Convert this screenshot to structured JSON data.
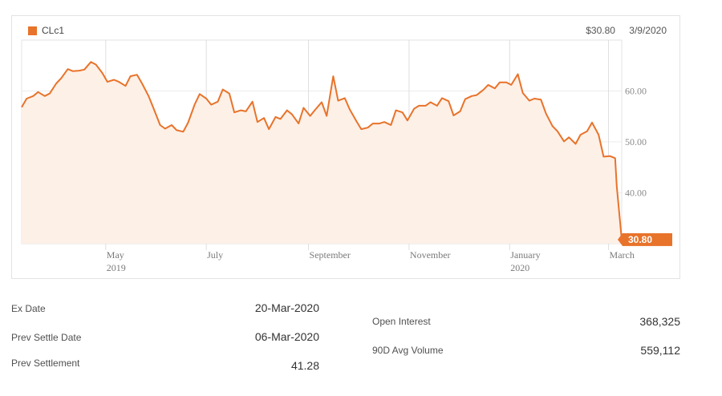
{
  "header": {
    "legend_label": "CLc1",
    "last_price": "$30.80",
    "last_date": "3/9/2020",
    "accent": "#e8732a"
  },
  "chart_data": {
    "type": "area",
    "series": [
      {
        "name": "CLc1",
        "color": "#e8732a"
      }
    ],
    "x_start": "2019-03-11",
    "x_end": "2020-03-09",
    "ylim": [
      30,
      70
    ],
    "yticks": [
      "60.00",
      "50.00",
      "40.00"
    ],
    "ytick_values": [
      60,
      50,
      40
    ],
    "xticks": [
      {
        "label": "May",
        "sub": "2019",
        "date": "2019-05-01"
      },
      {
        "label": "July",
        "sub": "",
        "date": "2019-07-01"
      },
      {
        "label": "September",
        "sub": "",
        "date": "2019-09-01"
      },
      {
        "label": "November",
        "sub": "",
        "date": "2019-11-01"
      },
      {
        "label": "January",
        "sub": "2020",
        "date": "2020-01-01"
      },
      {
        "label": "March",
        "sub": "",
        "date": "2020-03-01"
      }
    ],
    "last_label": "30.80",
    "points": [
      [
        "2019-03-11",
        56.8
      ],
      [
        "2019-03-14",
        58.5
      ],
      [
        "2019-03-18",
        59.0
      ],
      [
        "2019-03-21",
        59.8
      ],
      [
        "2019-03-25",
        59.0
      ],
      [
        "2019-03-28",
        59.5
      ],
      [
        "2019-04-01",
        61.5
      ],
      [
        "2019-04-04",
        62.5
      ],
      [
        "2019-04-08",
        64.3
      ],
      [
        "2019-04-11",
        63.9
      ],
      [
        "2019-04-15",
        64.0
      ],
      [
        "2019-04-18",
        64.2
      ],
      [
        "2019-04-22",
        65.7
      ],
      [
        "2019-04-25",
        65.2
      ],
      [
        "2019-04-29",
        63.5
      ],
      [
        "2019-05-02",
        61.8
      ],
      [
        "2019-05-06",
        62.2
      ],
      [
        "2019-05-09",
        61.8
      ],
      [
        "2019-05-13",
        61.0
      ],
      [
        "2019-05-16",
        62.9
      ],
      [
        "2019-05-20",
        63.2
      ],
      [
        "2019-05-23",
        61.5
      ],
      [
        "2019-05-27",
        59.0
      ],
      [
        "2019-05-30",
        56.6
      ],
      [
        "2019-06-03",
        53.3
      ],
      [
        "2019-06-06",
        52.6
      ],
      [
        "2019-06-10",
        53.3
      ],
      [
        "2019-06-13",
        52.3
      ],
      [
        "2019-06-17",
        52.0
      ],
      [
        "2019-06-20",
        53.8
      ],
      [
        "2019-06-24",
        57.4
      ],
      [
        "2019-06-27",
        59.4
      ],
      [
        "2019-07-01",
        58.5
      ],
      [
        "2019-07-04",
        57.3
      ],
      [
        "2019-07-08",
        57.9
      ],
      [
        "2019-07-11",
        60.3
      ],
      [
        "2019-07-15",
        59.5
      ],
      [
        "2019-07-18",
        55.8
      ],
      [
        "2019-07-22",
        56.2
      ],
      [
        "2019-07-25",
        56.0
      ],
      [
        "2019-07-29",
        57.9
      ],
      [
        "2019-08-01",
        53.9
      ],
      [
        "2019-08-05",
        54.7
      ],
      [
        "2019-08-08",
        52.5
      ],
      [
        "2019-08-12",
        54.9
      ],
      [
        "2019-08-15",
        54.5
      ],
      [
        "2019-08-19",
        56.2
      ],
      [
        "2019-08-22",
        55.4
      ],
      [
        "2019-08-26",
        53.6
      ],
      [
        "2019-08-29",
        56.7
      ],
      [
        "2019-09-02",
        55.1
      ],
      [
        "2019-09-05",
        56.3
      ],
      [
        "2019-09-09",
        57.8
      ],
      [
        "2019-09-12",
        55.1
      ],
      [
        "2019-09-16",
        62.9
      ],
      [
        "2019-09-19",
        58.1
      ],
      [
        "2019-09-23",
        58.6
      ],
      [
        "2019-09-26",
        56.4
      ],
      [
        "2019-09-30",
        54.1
      ],
      [
        "2019-10-03",
        52.5
      ],
      [
        "2019-10-07",
        52.8
      ],
      [
        "2019-10-10",
        53.6
      ],
      [
        "2019-10-14",
        53.6
      ],
      [
        "2019-10-17",
        53.9
      ],
      [
        "2019-10-21",
        53.3
      ],
      [
        "2019-10-24",
        56.2
      ],
      [
        "2019-10-28",
        55.8
      ],
      [
        "2019-10-31",
        54.2
      ],
      [
        "2019-11-04",
        56.5
      ],
      [
        "2019-11-07",
        57.1
      ],
      [
        "2019-11-11",
        57.1
      ],
      [
        "2019-11-14",
        57.8
      ],
      [
        "2019-11-18",
        57.1
      ],
      [
        "2019-11-21",
        58.6
      ],
      [
        "2019-11-25",
        58.0
      ],
      [
        "2019-11-28",
        55.2
      ],
      [
        "2019-12-02",
        56.0
      ],
      [
        "2019-12-05",
        58.4
      ],
      [
        "2019-12-09",
        59.0
      ],
      [
        "2019-12-12",
        59.2
      ],
      [
        "2019-12-16",
        60.2
      ],
      [
        "2019-12-19",
        61.2
      ],
      [
        "2019-12-23",
        60.5
      ],
      [
        "2019-12-26",
        61.7
      ],
      [
        "2019-12-30",
        61.7
      ],
      [
        "2020-01-02",
        61.2
      ],
      [
        "2020-01-06",
        63.3
      ],
      [
        "2020-01-09",
        59.6
      ],
      [
        "2020-01-13",
        58.1
      ],
      [
        "2020-01-16",
        58.5
      ],
      [
        "2020-01-20",
        58.3
      ],
      [
        "2020-01-23",
        55.6
      ],
      [
        "2020-01-27",
        53.1
      ],
      [
        "2020-01-30",
        52.1
      ],
      [
        "2020-02-03",
        50.1
      ],
      [
        "2020-02-06",
        50.9
      ],
      [
        "2020-02-10",
        49.6
      ],
      [
        "2020-02-13",
        51.4
      ],
      [
        "2020-02-17",
        52.1
      ],
      [
        "2020-02-20",
        53.8
      ],
      [
        "2020-02-24",
        51.4
      ],
      [
        "2020-02-27",
        47.1
      ],
      [
        "2020-03-02",
        47.2
      ],
      [
        "2020-03-05",
        46.8
      ],
      [
        "2020-03-06",
        41.3
      ],
      [
        "2020-03-09",
        30.8
      ]
    ]
  },
  "stats": {
    "left": [
      {
        "label": "Ex Date",
        "value": "20-Mar-2020"
      },
      {
        "label": "Prev Settle Date",
        "value": "06-Mar-2020"
      },
      {
        "label": "Prev Settlement",
        "value": "41.28"
      }
    ],
    "right": [
      {
        "label": "Open Interest",
        "value": "368,325"
      },
      {
        "label": "90D Avg Volume",
        "value": "559,112"
      }
    ]
  }
}
